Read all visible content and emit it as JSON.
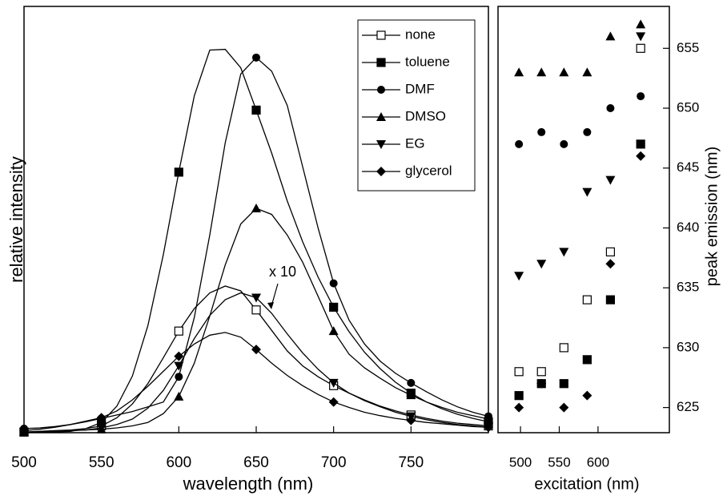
{
  "chart_data": [
    {
      "type": "line",
      "xlabel": "wavelength (nm)",
      "ylabel": "relative intensity",
      "x": [
        500,
        510,
        520,
        530,
        540,
        550,
        560,
        570,
        580,
        590,
        600,
        610,
        620,
        630,
        640,
        650,
        660,
        670,
        680,
        690,
        700,
        710,
        720,
        730,
        740,
        750,
        760,
        770,
        780,
        790,
        800
      ],
      "xlim": [
        500,
        800
      ],
      "xticks": [
        500,
        550,
        600,
        650,
        700,
        750
      ],
      "ylim": [
        0,
        6.25
      ],
      "legend": "upper right",
      "annotation": "x 10",
      "series": [
        {
          "name": "none",
          "color": "#000000",
          "marker": "open-square",
          "values": [
            0.01,
            0.02,
            0.03,
            0.04,
            0.06,
            0.1,
            0.22,
            0.42,
            0.72,
            1.1,
            1.49,
            1.82,
            2.05,
            2.15,
            2.08,
            1.8,
            1.5,
            1.2,
            0.98,
            0.82,
            0.69,
            0.58,
            0.48,
            0.39,
            0.32,
            0.26,
            0.21,
            0.17,
            0.14,
            0.12,
            0.1
          ]
        },
        {
          "name": "toluene",
          "color": "#000000",
          "marker": "square",
          "values": [
            0.01,
            0.01,
            0.01,
            0.02,
            0.06,
            0.15,
            0.39,
            0.83,
            1.57,
            2.61,
            3.82,
            4.94,
            5.61,
            5.62,
            5.35,
            4.73,
            4.1,
            3.4,
            2.8,
            2.28,
            1.84,
            1.48,
            1.18,
            0.94,
            0.74,
            0.58,
            0.45,
            0.35,
            0.27,
            0.21,
            0.16
          ]
        },
        {
          "name": "DMF",
          "color": "#000000",
          "marker": "circle",
          "values": [
            0.06,
            0.07,
            0.09,
            0.12,
            0.16,
            0.21,
            0.26,
            0.31,
            0.38,
            0.45,
            0.82,
            1.69,
            2.9,
            4.25,
            5.26,
            5.5,
            5.3,
            4.8,
            3.9,
            3.0,
            2.19,
            1.65,
            1.3,
            1.05,
            0.87,
            0.73,
            0.6,
            0.48,
            0.38,
            0.3,
            0.24
          ]
        },
        {
          "name": "DMSO",
          "color": "#000000",
          "marker": "triangle-up",
          "values": [
            0.01,
            0.01,
            0.02,
            0.03,
            0.04,
            0.05,
            0.07,
            0.1,
            0.15,
            0.28,
            0.53,
            1.02,
            1.71,
            2.46,
            3.06,
            3.29,
            3.2,
            2.9,
            2.5,
            2.0,
            1.49,
            1.15,
            0.95,
            0.8,
            0.66,
            0.55,
            0.45,
            0.37,
            0.3,
            0.25,
            0.2
          ]
        },
        {
          "name": "EG",
          "color": "#000000",
          "marker": "triangle-down",
          "values": [
            0.01,
            0.01,
            0.02,
            0.03,
            0.04,
            0.07,
            0.12,
            0.2,
            0.36,
            0.62,
            0.98,
            1.38,
            1.72,
            1.95,
            2.05,
            1.98,
            1.75,
            1.45,
            1.17,
            0.93,
            0.73,
            0.58,
            0.47,
            0.38,
            0.3,
            0.24,
            0.19,
            0.15,
            0.12,
            0.1,
            0.08
          ]
        },
        {
          "name": "glycerol",
          "color": "#000000",
          "marker": "diamond",
          "values": [
            0.03,
            0.05,
            0.08,
            0.12,
            0.17,
            0.22,
            0.32,
            0.48,
            0.68,
            0.9,
            1.12,
            1.3,
            1.43,
            1.47,
            1.4,
            1.22,
            1.02,
            0.84,
            0.69,
            0.56,
            0.45,
            0.37,
            0.3,
            0.25,
            0.21,
            0.18,
            0.15,
            0.13,
            0.11,
            0.09,
            0.08
          ]
        }
      ]
    },
    {
      "type": "scatter",
      "xlabel": "excitation (nm)",
      "ylabel": "peak emission (nm)",
      "x": [
        498,
        527,
        556,
        586,
        616,
        655
      ],
      "xlim": [
        471,
        692
      ],
      "xticks": [
        500,
        550,
        600
      ],
      "ylim": [
        622.9,
        658.5
      ],
      "yticks": [
        625,
        630,
        635,
        640,
        645,
        650,
        655
      ],
      "y_axis_side": "right",
      "series": [
        {
          "color": "#000000",
          "marker": "open-square",
          "values": [
            628,
            628,
            630,
            634,
            638,
            655
          ]
        },
        {
          "color": "#000000",
          "marker": "square",
          "values": [
            626,
            627,
            627,
            629,
            634,
            647
          ]
        },
        {
          "color": "#000000",
          "marker": "circle",
          "values": [
            647,
            648,
            647,
            648,
            650,
            651
          ]
        },
        {
          "color": "#000000",
          "marker": "triangle-up",
          "values": [
            653,
            653,
            653,
            653,
            656,
            657
          ]
        },
        {
          "color": "#000000",
          "marker": "triangle-down",
          "values": [
            636,
            637,
            638,
            643,
            644,
            656
          ]
        },
        {
          "color": "#000000",
          "marker": "diamond",
          "values": [
            625,
            627,
            625,
            626,
            637,
            646
          ]
        }
      ]
    }
  ]
}
